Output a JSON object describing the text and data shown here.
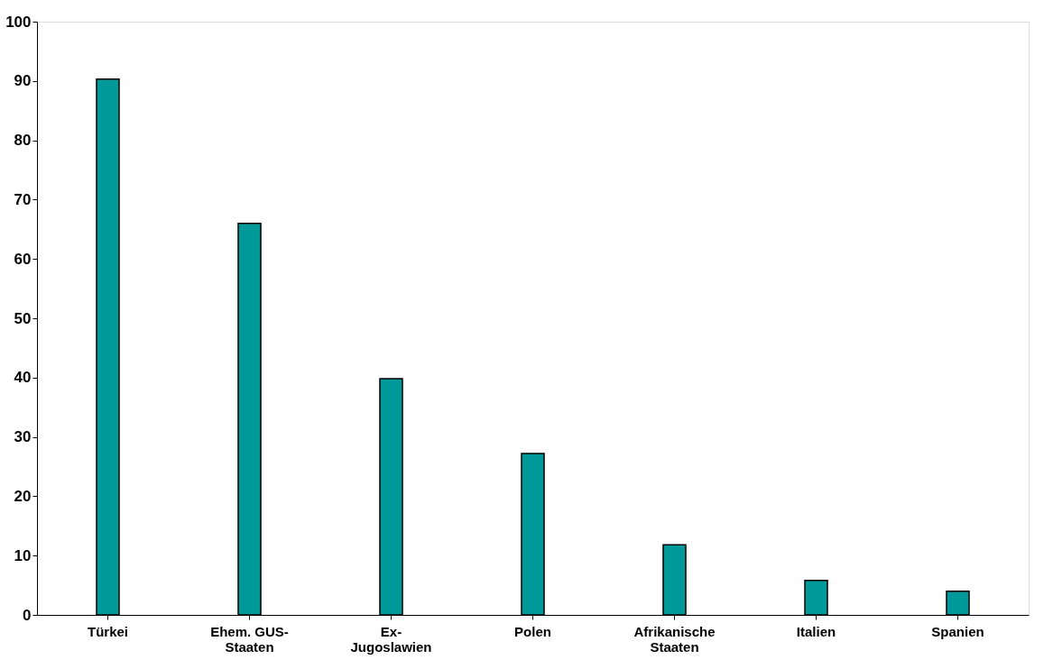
{
  "chart_data": {
    "type": "bar",
    "categories": [
      "Türkei",
      "Ehem. GUS-Staaten",
      "Ex-Jugoslawien",
      "Polen",
      "Afrikanische Staaten",
      "Italien",
      "Spanien"
    ],
    "values": [
      90.3,
      66.0,
      39.8,
      27.2,
      11.8,
      5.8,
      4.0
    ],
    "color": "#009999",
    "ylim": [
      0,
      100
    ],
    "yticks": [
      0,
      10,
      20,
      30,
      40,
      50,
      60,
      70,
      80,
      90,
      100
    ],
    "grid": false
  }
}
